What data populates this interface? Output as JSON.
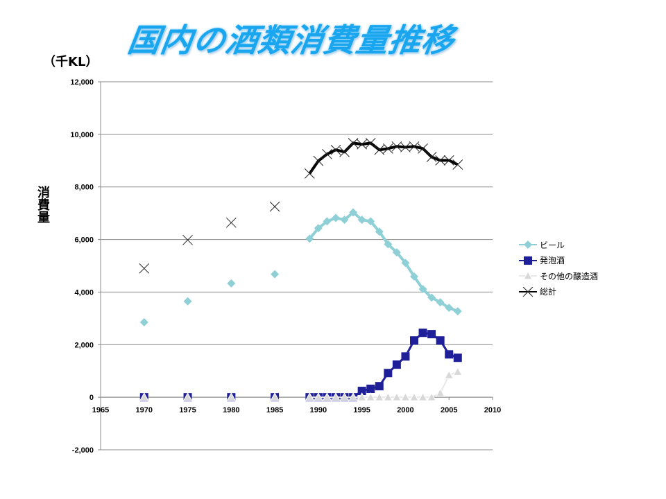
{
  "title": "国内の酒類消費量推移",
  "unit_label": "（千KL）",
  "chart_data": {
    "type": "line",
    "title": "国内の酒類消費量推移",
    "ylabel": "消費量",
    "xlabel": "",
    "xlim": [
      1965,
      2010
    ],
    "ylim": [
      -2000,
      12000
    ],
    "xticks": [
      1965,
      1970,
      1975,
      1980,
      1985,
      1990,
      1995,
      2000,
      2005,
      2010
    ],
    "yticks": [
      -2000,
      0,
      2000,
      4000,
      6000,
      8000,
      10000,
      12000
    ],
    "ytick_labels": [
      "-2,000",
      "0",
      "2,000",
      "4,000",
      "6,000",
      "8,000",
      "10,000",
      "12,000"
    ],
    "grid": "horizontal",
    "legend_position": "right",
    "x": [
      1970,
      1975,
      1980,
      1985,
      1989,
      1990,
      1991,
      1992,
      1993,
      1994,
      1995,
      1996,
      1997,
      1998,
      1999,
      2000,
      2001,
      2002,
      2003,
      2004,
      2005,
      2006
    ],
    "series": [
      {
        "name": "ビール",
        "color": "#8fcfd6",
        "marker": "diamond",
        "values": [
          2850,
          3650,
          4330,
          4680,
          6030,
          6430,
          6690,
          6820,
          6750,
          7030,
          6750,
          6690,
          6300,
          5820,
          5510,
          5110,
          4590,
          4110,
          3790,
          3610,
          3400,
          3270
        ]
      },
      {
        "name": "発泡酒",
        "color": "#1f1f9a",
        "marker": "square",
        "values": [
          0,
          0,
          0,
          0,
          0,
          0,
          0,
          0,
          0,
          0,
          240,
          320,
          420,
          920,
          1240,
          1550,
          2160,
          2450,
          2400,
          2160,
          1630,
          1500
        ]
      },
      {
        "name": "その他の醸造酒",
        "color": "#e8e8e8",
        "marker": "triangle",
        "values": [
          0,
          0,
          0,
          0,
          0,
          0,
          0,
          0,
          0,
          0,
          0,
          0,
          0,
          0,
          0,
          0,
          0,
          0,
          0,
          160,
          840,
          970
        ]
      },
      {
        "name": "総計",
        "color": "#000000",
        "marker": "x",
        "values": [
          4900,
          5980,
          6640,
          7250,
          8510,
          8990,
          9250,
          9410,
          9330,
          9670,
          9620,
          9670,
          9410,
          9460,
          9540,
          9510,
          9540,
          9460,
          9140,
          9010,
          9010,
          8850
        ]
      }
    ]
  }
}
